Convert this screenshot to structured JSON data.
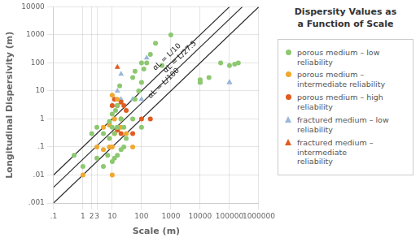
{
  "chart_data": {
    "type": "scatter",
    "title": "Dispersity Values as\na Function of Scale",
    "xlabel": "Scale (m)",
    "ylabel": "Longitudinal Dispersivity (m)",
    "log": true,
    "grid": true,
    "legend": "right",
    "xlim": [
      0.1,
      1000000
    ],
    "ylim": [
      0.001,
      10000
    ],
    "xticks": [
      {
        "value": 0.1,
        "label": ".1"
      },
      1,
      2,
      3,
      10,
      100,
      1000,
      10000,
      100000,
      1000000
    ],
    "yticks": [
      {
        "value": 0.001,
        "label": ".001"
      },
      {
        "value": 0.01,
        "label": ".01"
      },
      {
        "value": 0.1,
        "label": ".1"
      },
      1,
      10,
      100,
      1000,
      10000
    ],
    "series": [
      {
        "type": "line",
        "color": "#2a2a2a",
        "x": [
          0.1,
          100000
        ],
        "values": [
          0.01,
          10000
        ]
      },
      {
        "type": "line",
        "color": "#2a2a2a",
        "x": [
          0.1,
          275000
        ],
        "values": [
          0.0036363636363636364,
          10000
        ]
      },
      {
        "type": "line",
        "color": "#2a2a2a",
        "x": [
          0.1,
          1000000
        ],
        "values": [
          0.001,
          10000
        ]
      },
      {
        "name": "porous medium – low reliability",
        "type": "scatter",
        "marker": "circle",
        "color": "#8dc870",
        "x": [
          0.5,
          1,
          2,
          3,
          3,
          5,
          5,
          7,
          8,
          8,
          10,
          10,
          10,
          12,
          12,
          13,
          15,
          15,
          15,
          18,
          20,
          20,
          25,
          25,
          30,
          50,
          50,
          60,
          60,
          80,
          100,
          100,
          100,
          120,
          150,
          200,
          300,
          500,
          1000,
          10000,
          10000,
          20000,
          50000,
          100000,
          150000,
          200000
        ],
        "values": [
          0.05,
          0.02,
          0.3,
          0.5,
          0.04,
          0.3,
          0.02,
          0.05,
          0.2,
          0.8,
          0.03,
          0.5,
          1.5,
          0.04,
          0.3,
          2.0,
          0.05,
          0.5,
          3.0,
          15,
          0.08,
          1.0,
          0.1,
          0.5,
          0.2,
          30,
          1.0,
          5,
          50,
          10,
          20,
          0.5,
          100,
          60,
          100,
          200,
          500,
          80,
          1000,
          20,
          25,
          30,
          100,
          80,
          90,
          100
        ]
      },
      {
        "name": "porous medium – intermediate reliability",
        "type": "scatter",
        "marker": "circle",
        "color": "#f0a830",
        "x": [
          1,
          3,
          5,
          5,
          8,
          8,
          10,
          10,
          10,
          12,
          12,
          15,
          15,
          20,
          20,
          30,
          50
        ],
        "values": [
          0.01,
          0.1,
          0.5,
          0.08,
          0.6,
          0.1,
          0.01,
          0.1,
          7,
          0.3,
          1.0,
          0.5,
          5,
          0.5,
          1.0,
          0.3,
          0.1
        ]
      },
      {
        "name": "porous medium – high reliability",
        "type": "scatter",
        "marker": "circle",
        "color": "#e05c20",
        "x": [
          10,
          12,
          15,
          15,
          20,
          20,
          25,
          30,
          50,
          100,
          200
        ],
        "values": [
          3,
          5,
          3,
          0.4,
          4,
          0.3,
          3,
          2,
          0.3,
          1.0,
          1.0
        ]
      },
      {
        "name": "fractured medium – low reliability",
        "type": "scatter",
        "marker": "triangle",
        "color": "#9ab8d8",
        "x": [
          10,
          15,
          20,
          20,
          50,
          100,
          150,
          10000,
          100000,
          100000
        ],
        "values": [
          3,
          10,
          40,
          5,
          5,
          5,
          150,
          20,
          20,
          20
        ]
      },
      {
        "name": "fractured medium – intermediate\nreliability",
        "type": "scatter",
        "marker": "triangle",
        "color": "#e05c20",
        "x": [
          15,
          15
        ],
        "values": [
          70,
          0.4
        ]
      }
    ],
    "annotations": [
      {
        "text": "αL = L/10",
        "x": 900,
        "y": 130
      },
      {
        "text": "αL = L/27.5",
        "x": 2500,
        "y": 130
      },
      {
        "text": "αL = L/100",
        "x": 700,
        "y": 15
      }
    ]
  }
}
